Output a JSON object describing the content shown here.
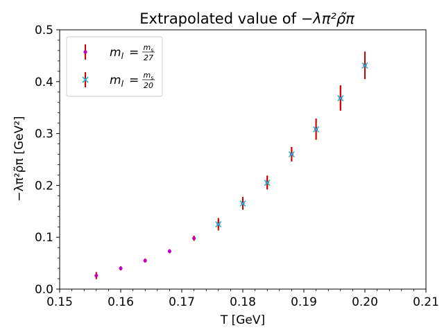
{
  "chart_data": {
    "type": "scatter",
    "title_prefix": "Extrapolated value of ",
    "title_symbol": "−λπ²ρ̃π",
    "xlabel": "T [GeV]",
    "ylabel": "−λπ²ρ̃π [GeV²]",
    "xlim": [
      0.15,
      0.21
    ],
    "ylim": [
      0.0,
      0.5
    ],
    "xticks": [
      "0.15",
      "0.16",
      "0.17",
      "0.18",
      "0.19",
      "0.20",
      "0.21"
    ],
    "yticks": [
      "0.0",
      "0.1",
      "0.2",
      "0.3",
      "0.4",
      "0.5"
    ],
    "legend_position": "top-left",
    "series": [
      {
        "name": "m_l = m_s/27",
        "legend_lhs": "m",
        "legend_sub": "l",
        "legend_num": "m",
        "legend_num_sub": "s",
        "legend_den": "27",
        "marker": "dot",
        "marker_color": "#c000c0",
        "error_color": "#d00000",
        "x": [
          0.156,
          0.16,
          0.164,
          0.168,
          0.172,
          0.176,
          0.18,
          0.184,
          0.188,
          0.192,
          0.196,
          0.2
        ],
        "y": [
          0.026,
          0.04,
          0.055,
          0.073,
          0.098,
          0.126,
          0.166,
          0.206,
          0.26,
          0.309,
          0.369,
          0.432
        ],
        "yerr": [
          0.007,
          0.004,
          0.004,
          0.004,
          0.005,
          0.009,
          0.012,
          0.013,
          0.014,
          0.02,
          0.024,
          0.026
        ]
      },
      {
        "name": "m_l = m_s/20",
        "legend_lhs": "m",
        "legend_sub": "l",
        "legend_num": "m",
        "legend_num_sub": "s",
        "legend_den": "20",
        "marker": "x",
        "marker_color": "#20b8c8",
        "error_color": "#d00000",
        "x": [
          0.176,
          0.18,
          0.184,
          0.188,
          0.192,
          0.196,
          0.2
        ],
        "y": [
          0.125,
          0.165,
          0.205,
          0.26,
          0.308,
          0.368,
          0.431
        ],
        "yerr": [
          0.012,
          0.012,
          0.013,
          0.014,
          0.02,
          0.024,
          0.026
        ]
      }
    ]
  }
}
